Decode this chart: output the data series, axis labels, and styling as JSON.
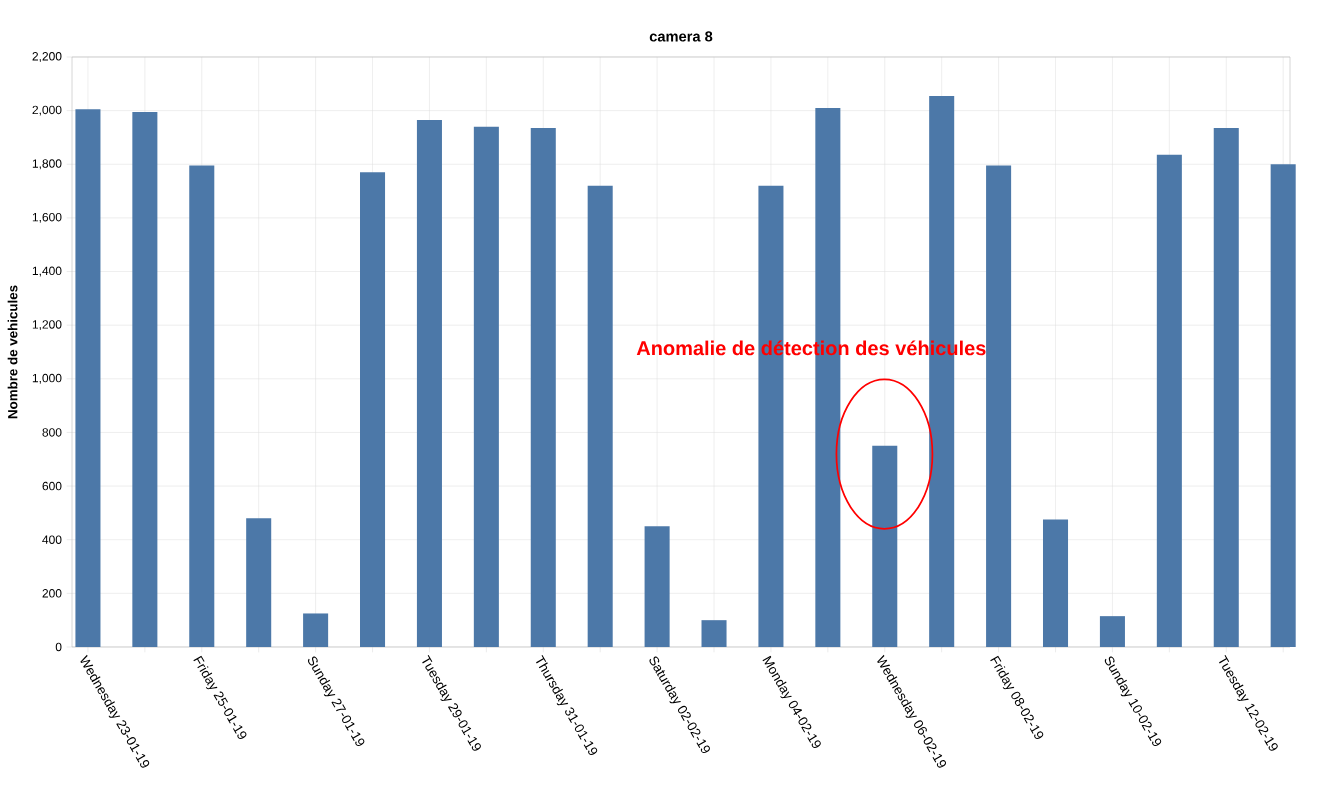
{
  "chart_data": {
    "type": "bar",
    "title": "camera 8",
    "ylabel": "Nombre de vehicules",
    "categories": [
      "Wednesday 23-01-19",
      null,
      "Friday 25-01-19",
      null,
      "Sunday 27-01-19",
      null,
      "Tuesday 29-01-19",
      null,
      "Thursday 31-01-19",
      null,
      "Saturday 02-02-19",
      null,
      "Monday 04-02-19",
      null,
      "Wednesday 06-02-19",
      null,
      "Friday 08-02-19",
      null,
      "Sunday 10-02-19",
      null,
      "Tuesday 12-02-19",
      null
    ],
    "values": [
      2005,
      1995,
      1795,
      480,
      125,
      1770,
      1965,
      1940,
      1935,
      1720,
      450,
      100,
      1720,
      2010,
      750,
      2055,
      1795,
      475,
      115,
      1835,
      1935,
      1800
    ],
    "color": "#4c78a8",
    "ylim": [
      0,
      2200
    ],
    "yticks": [
      0,
      200,
      400,
      600,
      800,
      {
        "value": 1000,
        "label": "1,000"
      },
      {
        "value": 1200,
        "label": "1,200"
      },
      {
        "value": 1400,
        "label": "1,400"
      },
      {
        "value": 1600,
        "label": "1,600"
      },
      {
        "value": 1800,
        "label": "1,800"
      },
      {
        "value": 2000,
        "label": "2,000"
      },
      {
        "value": 2200,
        "label": "2,200"
      }
    ],
    "grid": true,
    "annotations": [
      "Anomalie de détection des véhicules"
    ]
  }
}
